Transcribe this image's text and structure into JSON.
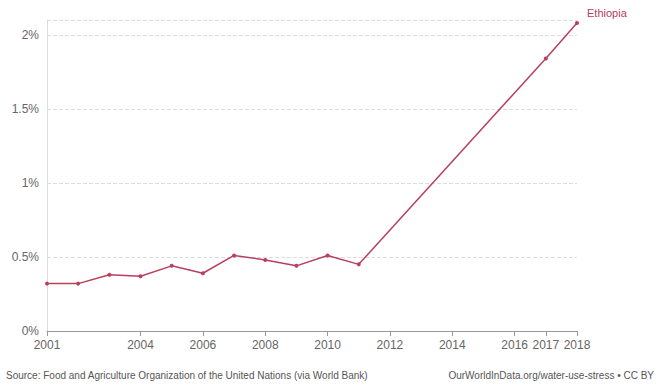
{
  "chart_data": {
    "type": "line",
    "x": [
      2001,
      2002,
      2003,
      2004,
      2005,
      2006,
      2007,
      2008,
      2009,
      2010,
      2011,
      2017,
      2018
    ],
    "series": [
      {
        "name": "Ethiopia",
        "color": "#b8405e",
        "values": [
          0.32,
          0.32,
          0.38,
          0.37,
          0.44,
          0.39,
          0.51,
          0.48,
          0.44,
          0.51,
          0.45,
          1.84,
          2.08
        ]
      }
    ],
    "xlim": [
      2001,
      2018
    ],
    "xticks": [
      2001,
      2004,
      2006,
      2008,
      2010,
      2012,
      2014,
      2016,
      2017,
      2018
    ],
    "ylim": [
      0,
      2.1
    ],
    "yticks": [
      {
        "value": 0,
        "label": "0%"
      },
      {
        "value": 0.5,
        "label": "0.5%"
      },
      {
        "value": 1,
        "label": "1%"
      },
      {
        "value": 1.5,
        "label": "1.5%"
      },
      {
        "value": 2,
        "label": "2%"
      }
    ],
    "grid": true,
    "marker": "circle",
    "source": "Source: Food and Agriculture Organization of the United Nations (via World Bank)",
    "credit": "OurWorldInData.org/water-use-stress • CC BY"
  }
}
